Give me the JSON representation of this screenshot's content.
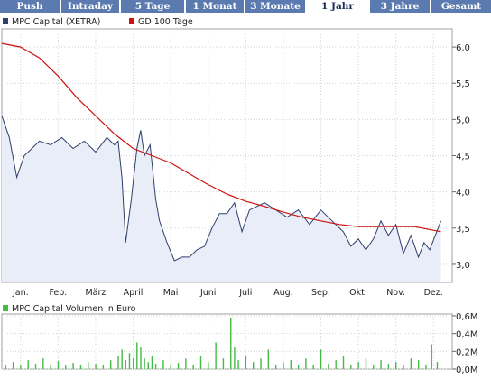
{
  "tabs": [
    {
      "label": "Push",
      "active": false
    },
    {
      "label": "Intraday",
      "active": false
    },
    {
      "label": "5 Tage",
      "active": false
    },
    {
      "label": "1 Monat",
      "active": false
    },
    {
      "label": "3 Monate",
      "active": false
    },
    {
      "label": "1 Jahr",
      "active": true
    },
    {
      "label": "3 Jahre",
      "active": false
    },
    {
      "label": "Gesamt",
      "active": false
    }
  ],
  "colors": {
    "tab_bg": "#5b7bb0",
    "price_line": "#2e3f6b",
    "price_fill": "#e8edf8",
    "ma_line": "#cc1111",
    "volume_bar": "#44bb44",
    "grid": "#d4d4d4",
    "panel_border": "#a0a0a0"
  },
  "chart_data": [
    {
      "type": "line",
      "legend": [
        {
          "name": "MPC Capital (XETRA)",
          "color": "#2e3f6b"
        },
        {
          "name": "GD 100 Tage",
          "color": "#cc1111"
        }
      ],
      "x_tick_labels": [
        "Jan.",
        "Feb.",
        "März",
        "April",
        "Mai",
        "Juni",
        "Juli",
        "Aug.",
        "Sep.",
        "Okt.",
        "Nov.",
        "Dez."
      ],
      "y_tick_labels": [
        "3,0",
        "3,5",
        "4,0",
        "4,5",
        "5,0",
        "5,5",
        "6,0"
      ],
      "y_ticks": [
        3.0,
        3.5,
        4.0,
        4.5,
        5.0,
        5.5,
        6.0
      ],
      "ylim": [
        2.75,
        6.25
      ],
      "grid": true,
      "series": [
        {
          "name": "MPC Capital (XETRA)",
          "x_month": [
            0,
            0.2,
            0.4,
            0.6,
            0.8,
            1.0,
            1.3,
            1.6,
            1.9,
            2.2,
            2.5,
            2.8,
            3.0,
            3.1,
            3.2,
            3.3,
            3.45,
            3.6,
            3.7,
            3.8,
            3.95,
            4.1,
            4.2,
            4.4,
            4.6,
            4.8,
            5.0,
            5.2,
            5.4,
            5.6,
            5.8,
            6.0,
            6.2,
            6.4,
            6.6,
            6.8,
            7.0,
            7.3,
            7.6,
            7.9,
            8.2,
            8.5,
            8.8,
            9.1,
            9.3,
            9.5,
            9.7,
            9.9,
            10.1,
            10.3,
            10.5,
            10.7,
            10.9,
            11.1,
            11.25,
            11.4,
            11.55,
            11.7
          ],
          "values": [
            5.05,
            4.75,
            4.2,
            4.5,
            4.6,
            4.7,
            4.65,
            4.75,
            4.6,
            4.7,
            4.55,
            4.75,
            4.65,
            4.7,
            4.2,
            3.3,
            3.9,
            4.6,
            4.85,
            4.5,
            4.65,
            3.9,
            3.6,
            3.3,
            3.05,
            3.1,
            3.1,
            3.2,
            3.25,
            3.5,
            3.7,
            3.7,
            3.85,
            3.45,
            3.75,
            3.8,
            3.85,
            3.75,
            3.65,
            3.75,
            3.55,
            3.75,
            3.6,
            3.45,
            3.25,
            3.35,
            3.2,
            3.35,
            3.6,
            3.4,
            3.55,
            3.15,
            3.4,
            3.1,
            3.3,
            3.2,
            3.4,
            3.6
          ]
        },
        {
          "name": "GD 100 Tage",
          "x_month": [
            0,
            0.5,
            1.0,
            1.5,
            2.0,
            2.5,
            3.0,
            3.5,
            4.0,
            4.5,
            5.0,
            5.5,
            6.0,
            6.5,
            7.0,
            7.5,
            8.0,
            8.5,
            9.0,
            9.5,
            10.0,
            10.5,
            11.0,
            11.5,
            11.7
          ],
          "values": [
            6.05,
            6.0,
            5.85,
            5.6,
            5.3,
            5.05,
            4.8,
            4.6,
            4.5,
            4.4,
            4.25,
            4.1,
            3.97,
            3.87,
            3.8,
            3.72,
            3.65,
            3.6,
            3.55,
            3.52,
            3.52,
            3.52,
            3.52,
            3.47,
            3.45
          ]
        }
      ]
    },
    {
      "type": "bar",
      "legend": [
        {
          "name": "MPC Capital Volumen in Euro",
          "color": "#44bb44"
        }
      ],
      "y_tick_labels": [
        "0,0M",
        "0,2M",
        "0,4M",
        "0,6M"
      ],
      "y_ticks": [
        0,
        0.2,
        0.4,
        0.6
      ],
      "ylim": [
        0,
        0.62
      ],
      "grid": true,
      "x_month": [
        0.1,
        0.3,
        0.5,
        0.7,
        0.9,
        1.1,
        1.3,
        1.5,
        1.7,
        1.9,
        2.1,
        2.3,
        2.5,
        2.7,
        2.9,
        3.1,
        3.2,
        3.3,
        3.4,
        3.5,
        3.6,
        3.7,
        3.8,
        3.9,
        4.0,
        4.1,
        4.3,
        4.5,
        4.7,
        4.9,
        5.1,
        5.3,
        5.5,
        5.7,
        5.9,
        6.1,
        6.2,
        6.3,
        6.5,
        6.7,
        6.9,
        7.1,
        7.3,
        7.5,
        7.7,
        7.9,
        8.1,
        8.3,
        8.5,
        8.7,
        8.9,
        9.1,
        9.3,
        9.5,
        9.7,
        9.9,
        10.1,
        10.3,
        10.5,
        10.7,
        10.9,
        11.1,
        11.3,
        11.45,
        11.6
      ],
      "values": [
        0.05,
        0.08,
        0.04,
        0.1,
        0.06,
        0.12,
        0.05,
        0.09,
        0.04,
        0.07,
        0.05,
        0.08,
        0.06,
        0.05,
        0.1,
        0.15,
        0.22,
        0.1,
        0.18,
        0.12,
        0.3,
        0.25,
        0.12,
        0.08,
        0.15,
        0.06,
        0.1,
        0.05,
        0.07,
        0.12,
        0.05,
        0.15,
        0.08,
        0.3,
        0.12,
        0.58,
        0.25,
        0.1,
        0.15,
        0.08,
        0.12,
        0.22,
        0.05,
        0.08,
        0.1,
        0.05,
        0.12,
        0.05,
        0.22,
        0.06,
        0.1,
        0.15,
        0.05,
        0.08,
        0.12,
        0.05,
        0.1,
        0.06,
        0.08,
        0.05,
        0.12,
        0.1,
        0.05,
        0.28,
        0.08
      ]
    }
  ]
}
